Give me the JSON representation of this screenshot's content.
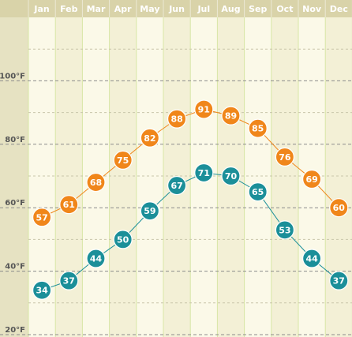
{
  "chart_data": {
    "type": "line",
    "categories": [
      "Jan",
      "Feb",
      "Mar",
      "Apr",
      "May",
      "Jun",
      "Jul",
      "Aug",
      "Sep",
      "Oct",
      "Nov",
      "Dec"
    ],
    "series": [
      {
        "color": "#f0861a",
        "values": [
          57,
          61,
          68,
          75,
          82,
          88,
          91,
          89,
          85,
          76,
          69,
          60
        ]
      },
      {
        "color": "#1b8f99",
        "values": [
          34,
          37,
          44,
          50,
          59,
          67,
          71,
          70,
          65,
          53,
          44,
          37
        ]
      }
    ],
    "yticks": [
      {
        "value": 20,
        "label": "20°F"
      },
      {
        "value": 40,
        "label": "40°F"
      },
      {
        "value": 60,
        "label": "60°F"
      },
      {
        "value": 80,
        "label": "80°F"
      },
      {
        "value": 100,
        "label": "100°F"
      }
    ],
    "ylim": [
      20,
      120
    ],
    "grid": true,
    "xlabel": "",
    "ylabel": "",
    "title": ""
  },
  "colors": {
    "header_bg": "#d9d3a9",
    "header_text": "#ffffff",
    "gutter_bg": "#e6e2c2",
    "band_light": "#fbf9e8",
    "band_dark": "#f3f0d6",
    "divider": "#d8e6a6",
    "major_grid": "#8c8c8c",
    "minor_grid": "#c9c6aa",
    "axis_text": "#555555",
    "point_text": "#ffffff"
  }
}
